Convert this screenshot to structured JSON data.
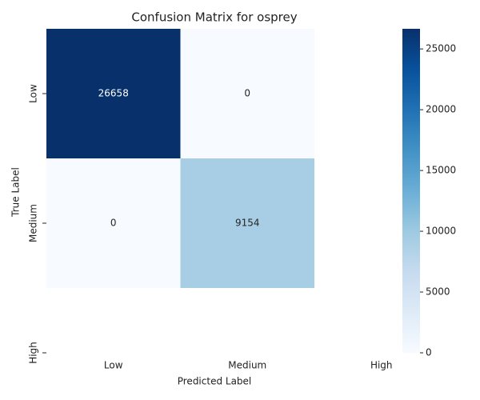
{
  "chart_data": {
    "type": "heatmap",
    "title": "Confusion Matrix for osprey",
    "xlabel": "Predicted Label",
    "ylabel": "True Label",
    "x_categories": [
      "Low",
      "Medium",
      "High"
    ],
    "y_categories": [
      "Low",
      "Medium",
      "High"
    ],
    "values": [
      [
        26658,
        0,
        null
      ],
      [
        0,
        9154,
        null
      ],
      [
        null,
        null,
        null
      ]
    ],
    "colormap": "Blues",
    "colorbar_lim": [
      0,
      26658
    ],
    "colorbar_ticks": [
      0,
      5000,
      10000,
      15000,
      20000,
      25000
    ]
  }
}
